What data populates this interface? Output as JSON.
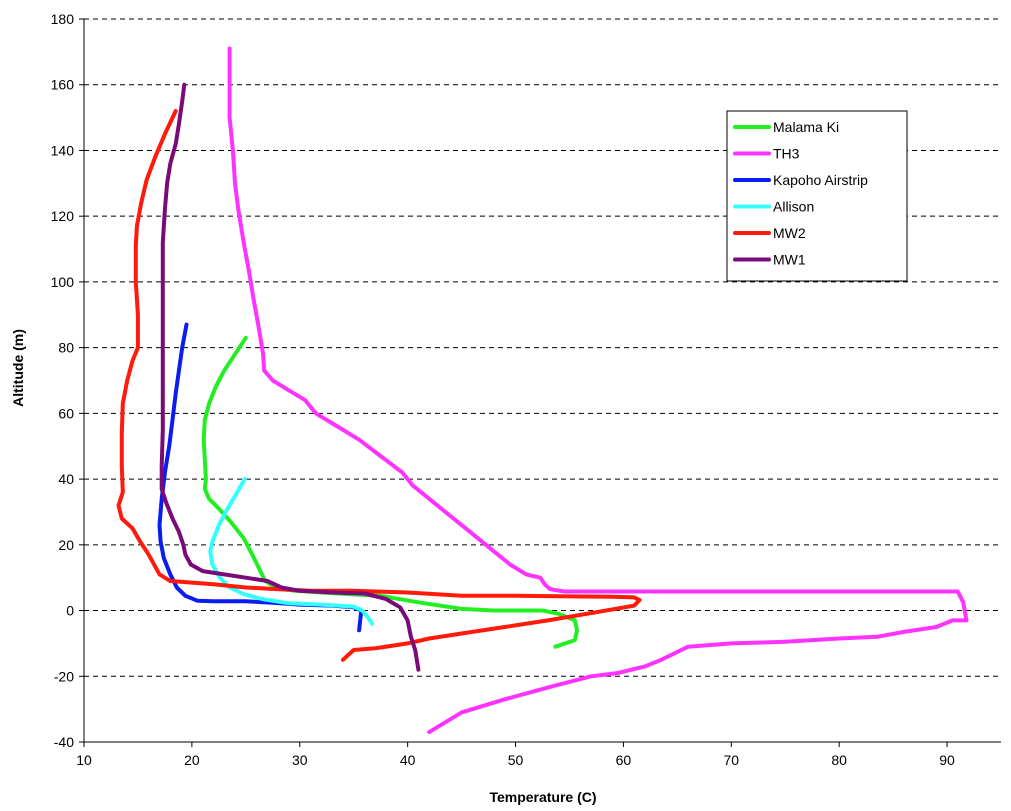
{
  "chart_data": {
    "type": "line",
    "title": "",
    "xlabel": "Temperature  (C)",
    "ylabel": "Altitude (m)",
    "xlim": [
      10,
      95
    ],
    "ylim": [
      -40,
      180
    ],
    "x_ticks": [
      10,
      20,
      30,
      40,
      50,
      60,
      70,
      80,
      90
    ],
    "y_ticks": [
      -40,
      -20,
      0,
      20,
      40,
      60,
      80,
      100,
      120,
      140,
      160,
      180
    ],
    "grid": "horizontal dashed",
    "legend_position": "top-right",
    "series": [
      {
        "name": "Malama Ki",
        "color": "#22ee22",
        "points": [
          [
            25.0,
            83
          ],
          [
            24.0,
            78
          ],
          [
            23.0,
            73
          ],
          [
            22.2,
            68
          ],
          [
            21.6,
            63
          ],
          [
            21.2,
            58
          ],
          [
            21.1,
            52
          ],
          [
            21.2,
            46
          ],
          [
            21.3,
            40
          ],
          [
            21.2,
            37
          ],
          [
            21.6,
            34
          ],
          [
            22.5,
            31
          ],
          [
            23.6,
            27
          ],
          [
            24.8,
            22
          ],
          [
            25.6,
            17
          ],
          [
            26.2,
            13
          ],
          [
            26.8,
            9
          ],
          [
            27.8,
            7
          ],
          [
            29.5,
            6
          ],
          [
            32.0,
            5.5
          ],
          [
            34.5,
            5
          ],
          [
            37.5,
            4.5
          ],
          [
            41.0,
            2.5
          ],
          [
            45.0,
            0.5
          ],
          [
            48.0,
            0
          ],
          [
            51.0,
            0
          ],
          [
            52.5,
            0
          ],
          [
            54.0,
            -1
          ],
          [
            55.5,
            -3
          ],
          [
            55.7,
            -6
          ],
          [
            55.5,
            -9
          ],
          [
            53.7,
            -11
          ]
        ]
      },
      {
        "name": "TH3",
        "color": "#ff33ff",
        "points": [
          [
            23.5,
            171
          ],
          [
            23.5,
            160
          ],
          [
            23.5,
            150
          ],
          [
            23.8,
            140
          ],
          [
            24.0,
            130
          ],
          [
            24.3,
            122
          ],
          [
            24.8,
            112
          ],
          [
            25.3,
            103
          ],
          [
            25.7,
            95
          ],
          [
            26.2,
            86
          ],
          [
            26.6,
            78
          ],
          [
            26.7,
            73
          ],
          [
            27.5,
            70
          ],
          [
            29.0,
            67
          ],
          [
            30.5,
            64
          ],
          [
            31.5,
            60
          ],
          [
            33.5,
            56
          ],
          [
            35.5,
            52
          ],
          [
            37.5,
            47
          ],
          [
            39.5,
            42
          ],
          [
            40.5,
            38
          ],
          [
            42.0,
            34
          ],
          [
            43.5,
            30
          ],
          [
            45.0,
            26
          ],
          [
            46.5,
            22
          ],
          [
            48.0,
            18
          ],
          [
            49.5,
            14
          ],
          [
            51.0,
            11
          ],
          [
            52.3,
            10
          ],
          [
            52.7,
            8
          ],
          [
            53.2,
            6.5
          ],
          [
            54.5,
            5.8
          ],
          [
            58.0,
            5.8
          ],
          [
            65.0,
            5.8
          ],
          [
            75.0,
            5.8
          ],
          [
            85.0,
            5.8
          ],
          [
            91.0,
            5.8
          ],
          [
            91.5,
            2.5
          ],
          [
            91.8,
            -3
          ],
          [
            90.5,
            -3
          ],
          [
            89.0,
            -5
          ],
          [
            86.0,
            -6.5
          ],
          [
            83.5,
            -8
          ],
          [
            80.0,
            -8.5
          ],
          [
            75.0,
            -9.5
          ],
          [
            70.0,
            -10
          ],
          [
            66.0,
            -11
          ],
          [
            63.5,
            -15
          ],
          [
            62.0,
            -17
          ],
          [
            59.5,
            -19
          ],
          [
            57.0,
            -20
          ],
          [
            53.5,
            -23
          ],
          [
            49.0,
            -27
          ],
          [
            45.0,
            -31
          ],
          [
            42.0,
            -37
          ]
        ]
      },
      {
        "name": "Kapoho Airstrip",
        "color": "#0a1cf0",
        "points": [
          [
            19.5,
            87
          ],
          [
            19.1,
            80
          ],
          [
            18.8,
            73
          ],
          [
            18.5,
            66
          ],
          [
            18.2,
            58
          ],
          [
            17.9,
            50
          ],
          [
            17.5,
            42
          ],
          [
            17.2,
            34
          ],
          [
            17.0,
            26
          ],
          [
            17.1,
            21
          ],
          [
            17.4,
            16
          ],
          [
            18.0,
            11
          ],
          [
            18.6,
            7
          ],
          [
            19.4,
            4.5
          ],
          [
            20.5,
            3
          ],
          [
            22.0,
            2.8
          ],
          [
            25.0,
            2.8
          ],
          [
            27.5,
            2.4
          ],
          [
            30.0,
            1.8
          ],
          [
            33.0,
            1.5
          ],
          [
            35.0,
            1.0
          ],
          [
            35.7,
            0
          ],
          [
            35.6,
            -3
          ],
          [
            35.5,
            -6
          ]
        ]
      },
      {
        "name": "Allison",
        "color": "#33ffff",
        "points": [
          [
            24.9,
            40
          ],
          [
            24.2,
            36
          ],
          [
            23.3,
            31
          ],
          [
            22.5,
            26
          ],
          [
            21.9,
            21
          ],
          [
            21.7,
            18
          ],
          [
            21.9,
            14
          ],
          [
            22.6,
            10
          ],
          [
            23.5,
            7
          ],
          [
            24.8,
            5
          ],
          [
            26.5,
            3.5
          ],
          [
            29.0,
            2.2
          ],
          [
            32.0,
            1.8
          ],
          [
            35.0,
            1.2
          ],
          [
            35.8,
            0
          ],
          [
            36.3,
            -2
          ],
          [
            36.7,
            -4
          ]
        ]
      },
      {
        "name": "MW2",
        "color": "#ff1a0a",
        "points": [
          [
            18.5,
            152
          ],
          [
            17.5,
            145
          ],
          [
            16.6,
            138
          ],
          [
            15.8,
            131
          ],
          [
            15.3,
            124
          ],
          [
            14.9,
            117
          ],
          [
            14.8,
            111
          ],
          [
            14.8,
            100
          ],
          [
            15.0,
            90
          ],
          [
            15.0,
            80
          ],
          [
            14.5,
            76
          ],
          [
            14.0,
            70
          ],
          [
            13.6,
            63
          ],
          [
            13.5,
            54
          ],
          [
            13.5,
            44
          ],
          [
            13.6,
            36
          ],
          [
            13.2,
            32
          ],
          [
            13.5,
            28
          ],
          [
            14.5,
            25
          ],
          [
            15.2,
            21
          ],
          [
            16.0,
            17
          ],
          [
            17.0,
            11
          ],
          [
            18.0,
            9
          ],
          [
            20.0,
            8.5
          ],
          [
            22.0,
            8
          ],
          [
            25.0,
            7
          ],
          [
            28.0,
            6.5
          ],
          [
            31.0,
            6
          ],
          [
            35.0,
            6
          ],
          [
            40.0,
            5.5
          ],
          [
            45.0,
            4.5
          ],
          [
            50.0,
            4.5
          ],
          [
            55.0,
            4.3
          ],
          [
            59.0,
            4.2
          ],
          [
            61.0,
            4.0
          ],
          [
            61.5,
            3.2
          ],
          [
            61.0,
            1.5
          ],
          [
            57.5,
            -0.5
          ],
          [
            53.0,
            -3
          ],
          [
            49.0,
            -5
          ],
          [
            45.0,
            -7
          ],
          [
            42.0,
            -8.5
          ],
          [
            40.0,
            -10
          ],
          [
            37.0,
            -11.5
          ],
          [
            35.0,
            -12
          ],
          [
            34.5,
            -13.5
          ],
          [
            34.0,
            -15
          ]
        ]
      },
      {
        "name": "MW1",
        "color": "#7a0a7a",
        "points": [
          [
            19.3,
            160
          ],
          [
            19.1,
            155
          ],
          [
            18.8,
            148
          ],
          [
            18.5,
            142
          ],
          [
            18.0,
            136
          ],
          [
            17.7,
            130
          ],
          [
            17.5,
            122
          ],
          [
            17.3,
            112
          ],
          [
            17.3,
            100
          ],
          [
            17.3,
            85
          ],
          [
            17.3,
            70
          ],
          [
            17.3,
            55
          ],
          [
            17.2,
            44
          ],
          [
            17.2,
            37
          ],
          [
            17.6,
            33
          ],
          [
            18.2,
            28
          ],
          [
            18.8,
            24
          ],
          [
            19.2,
            20
          ],
          [
            19.4,
            17
          ],
          [
            19.9,
            14
          ],
          [
            21.0,
            12
          ],
          [
            23.0,
            11
          ],
          [
            25.0,
            10
          ],
          [
            27.0,
            9
          ],
          [
            28.3,
            7
          ],
          [
            30.0,
            6
          ],
          [
            33.0,
            5.5
          ],
          [
            36.0,
            5.2
          ],
          [
            38.0,
            3.5
          ],
          [
            39.3,
            1
          ],
          [
            40.0,
            -3
          ],
          [
            40.3,
            -8
          ],
          [
            40.7,
            -12
          ],
          [
            41.0,
            -18
          ]
        ]
      }
    ]
  }
}
